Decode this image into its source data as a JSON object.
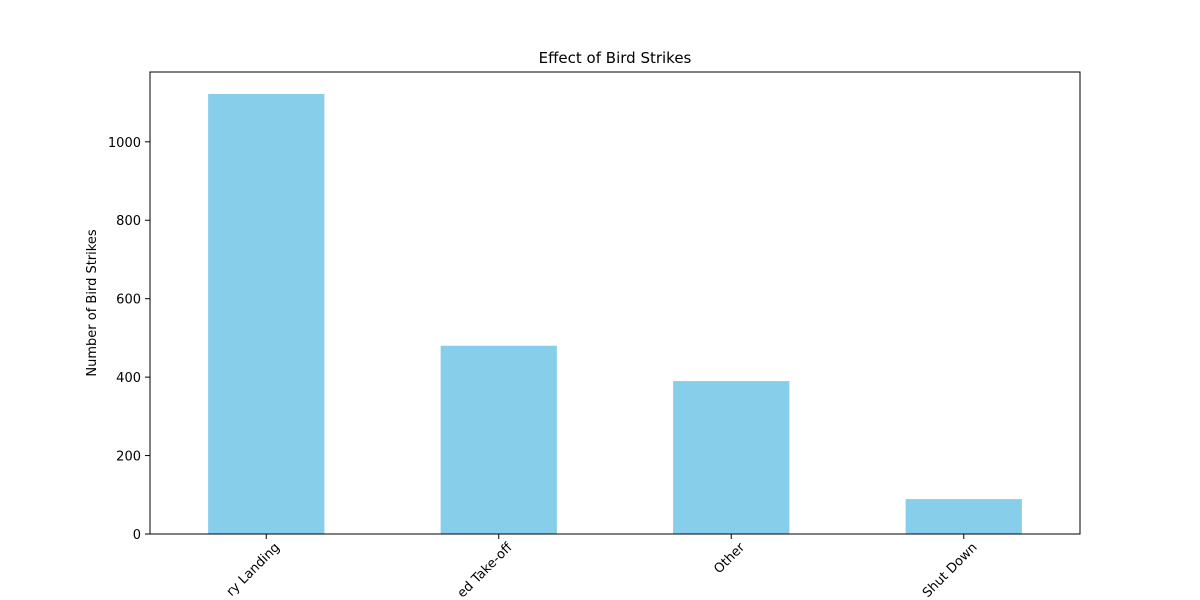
{
  "chart_data": {
    "type": "bar",
    "title": "Effect of Bird Strikes",
    "y_label": "Number of Bird Strikes",
    "categories": [
      "ry Landing",
      "ed Take-off",
      "Other",
      "Shut Down"
    ],
    "values": [
      1122,
      480,
      390,
      89
    ],
    "color": "#87ceeb",
    "ylim": [
      0,
      1178
    ],
    "yticks": [
      0,
      200,
      400,
      600,
      800,
      1000
    ],
    "grid": false
  }
}
